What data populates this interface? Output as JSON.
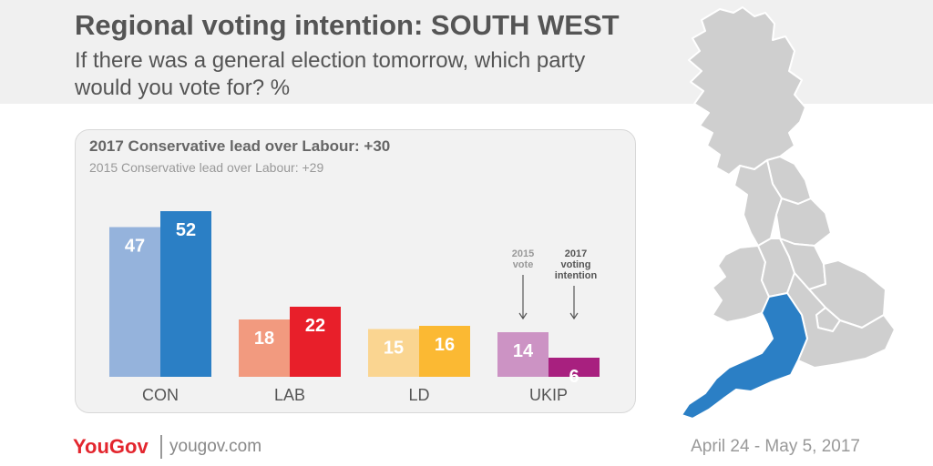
{
  "header": {
    "title": "Regional voting intention: SOUTH WEST",
    "subtitle": "If there was a general election tomorrow, which party would you vote for? %"
  },
  "panel": {
    "lead_2017": "2017 Conservative lead over Labour: +30",
    "lead_2015": "2015 Conservative lead over Labour: +29"
  },
  "chart_data": {
    "type": "bar",
    "categories": [
      "CON",
      "LAB",
      "LD",
      "UKIP"
    ],
    "series": [
      {
        "name": "2015 vote",
        "values": [
          47,
          18,
          15,
          14
        ]
      },
      {
        "name": "2017 voting intention",
        "values": [
          52,
          22,
          16,
          6
        ]
      }
    ],
    "title": "",
    "xlabel": "",
    "ylabel": "",
    "ylim": [
      0,
      60
    ],
    "grid": false,
    "annotations": [
      {
        "category": "UKIP",
        "series": "2015 vote",
        "text": [
          "2015",
          "vote"
        ]
      },
      {
        "category": "UKIP",
        "series": "2017 voting intention",
        "text": [
          "2017",
          "voting",
          "intention"
        ]
      }
    ],
    "colors": {
      "2015": [
        "#95b3dc",
        "#f29a7f",
        "#fad591",
        "#cc93c4"
      ],
      "2017": [
        "#2b7fc5",
        "#e81f2a",
        "#fbb933",
        "#a8207f"
      ]
    }
  },
  "map": {
    "highlight_color": "#2b7fc5",
    "base_color": "#cfcfcf",
    "border_color": "#ffffff"
  },
  "footer": {
    "logo": "YouGov",
    "url": "yougov.com",
    "date": "April 24 - May 5, 2017"
  }
}
